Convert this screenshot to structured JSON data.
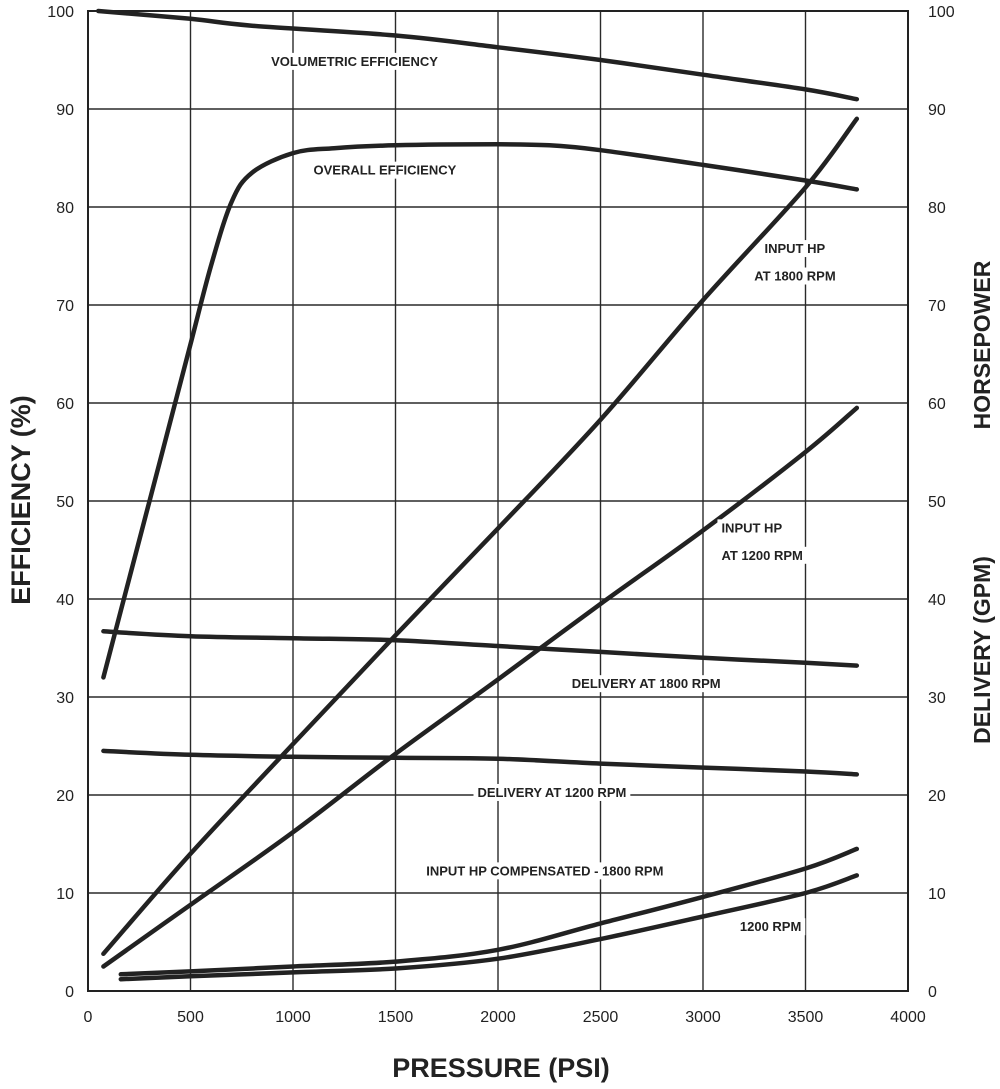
{
  "chart_data": {
    "type": "line",
    "xlabel": "PRESSURE (PSI)",
    "ylabel_left": "EFFICIENCY (%)",
    "ylabel_right_top": "HORSEPOWER",
    "ylabel_right_bottom": "DELIVERY (GPM)",
    "xlim": [
      0,
      4000
    ],
    "ylim": [
      0,
      100
    ],
    "x_ticks": [
      0,
      500,
      1000,
      1500,
      2000,
      2500,
      3000,
      3500,
      4000
    ],
    "y_ticks": [
      0,
      10,
      20,
      30,
      40,
      50,
      60,
      70,
      80,
      90,
      100
    ],
    "grid": true,
    "series": [
      {
        "name": "VOLUMETRIC EFFICIENCY",
        "points": [
          [
            50,
            100
          ],
          [
            500,
            99.2
          ],
          [
            800,
            98.5
          ],
          [
            1500,
            97.5
          ],
          [
            2000,
            96.3
          ],
          [
            2500,
            95
          ],
          [
            3000,
            93.5
          ],
          [
            3500,
            92
          ],
          [
            3750,
            91
          ]
        ]
      },
      {
        "name": "OVERALL EFFICIENCY",
        "points": [
          [
            75,
            32
          ],
          [
            200,
            42
          ],
          [
            350,
            54
          ],
          [
            500,
            66
          ],
          [
            600,
            74
          ],
          [
            700,
            80.5
          ],
          [
            800,
            83.5
          ],
          [
            1000,
            85.5
          ],
          [
            1200,
            86
          ],
          [
            1500,
            86.3
          ],
          [
            2000,
            86.4
          ],
          [
            2250,
            86.3
          ],
          [
            2500,
            85.8
          ],
          [
            3000,
            84.3
          ],
          [
            3500,
            82.7
          ],
          [
            3750,
            81.8
          ]
        ]
      },
      {
        "name": "INPUT HP AT 1800 RPM",
        "points": [
          [
            75,
            3.8
          ],
          [
            500,
            14
          ],
          [
            1000,
            25.2
          ],
          [
            1500,
            36.3
          ],
          [
            2000,
            47.2
          ],
          [
            2500,
            58.3
          ],
          [
            3000,
            70.5
          ],
          [
            3500,
            82
          ],
          [
            3750,
            89
          ]
        ]
      },
      {
        "name": "INPUT HP AT 1200 RPM",
        "points": [
          [
            75,
            2.5
          ],
          [
            500,
            8.8
          ],
          [
            1000,
            16.2
          ],
          [
            1500,
            24.2
          ],
          [
            2000,
            31.8
          ],
          [
            2500,
            39.5
          ],
          [
            3000,
            47
          ],
          [
            3500,
            55
          ],
          [
            3750,
            59.5
          ]
        ]
      },
      {
        "name": "DELIVERY AT 1800 RPM",
        "points": [
          [
            75,
            36.7
          ],
          [
            500,
            36.2
          ],
          [
            1000,
            36
          ],
          [
            1500,
            35.8
          ],
          [
            2000,
            35.2
          ],
          [
            2500,
            34.6
          ],
          [
            3000,
            34
          ],
          [
            3500,
            33.5
          ],
          [
            3750,
            33.2
          ]
        ]
      },
      {
        "name": "DELIVERY AT 1200 RPM",
        "points": [
          [
            75,
            24.5
          ],
          [
            500,
            24.1
          ],
          [
            1000,
            23.9
          ],
          [
            1500,
            23.8
          ],
          [
            2000,
            23.7
          ],
          [
            2500,
            23.2
          ],
          [
            3000,
            22.8
          ],
          [
            3500,
            22.4
          ],
          [
            3750,
            22.1
          ]
        ]
      },
      {
        "name": "INPUT HP COMPENSATED - 1800 RPM",
        "points": [
          [
            160,
            1.7
          ],
          [
            500,
            2
          ],
          [
            1000,
            2.5
          ],
          [
            1500,
            3
          ],
          [
            2000,
            4.2
          ],
          [
            2500,
            6.9
          ],
          [
            3000,
            9.6
          ],
          [
            3500,
            12.5
          ],
          [
            3750,
            14.5
          ]
        ]
      },
      {
        "name": "1200 RPM",
        "points": [
          [
            160,
            1.2
          ],
          [
            500,
            1.5
          ],
          [
            1000,
            1.9
          ],
          [
            1500,
            2.3
          ],
          [
            2000,
            3.3
          ],
          [
            2500,
            5.3
          ],
          [
            3000,
            7.6
          ],
          [
            3500,
            10
          ],
          [
            3750,
            11.8
          ]
        ]
      }
    ],
    "annotations": [
      {
        "text": "VOLUMETRIC EFFICIENCY",
        "x": 1300,
        "y": 94.4,
        "anchor": "middle"
      },
      {
        "text": "OVERALL EFFICIENCY",
        "x": 1100,
        "y": 83.3,
        "anchor": "start"
      },
      {
        "text": "INPUT HP",
        "x": 3300,
        "y": 75.3,
        "anchor": "start"
      },
      {
        "text": "AT 1800 RPM",
        "x": 3250,
        "y": 72.5,
        "anchor": "start"
      },
      {
        "text": "INPUT HP",
        "x": 3090,
        "y": 46.8,
        "anchor": "start"
      },
      {
        "text": "AT 1200 RPM",
        "x": 3090,
        "y": 44.0,
        "anchor": "start"
      },
      {
        "text": "DELIVERY AT 1800 RPM",
        "x": 2360,
        "y": 30.9,
        "anchor": "start"
      },
      {
        "text": "DELIVERY AT 1200 RPM",
        "x": 1900,
        "y": 19.8,
        "anchor": "start"
      },
      {
        "text": "INPUT HP COMPENSATED - 1800 RPM",
        "x": 1650,
        "y": 11.8,
        "anchor": "start"
      },
      {
        "text": "1200 RPM",
        "x": 3180,
        "y": 6.1,
        "anchor": "start"
      }
    ]
  }
}
